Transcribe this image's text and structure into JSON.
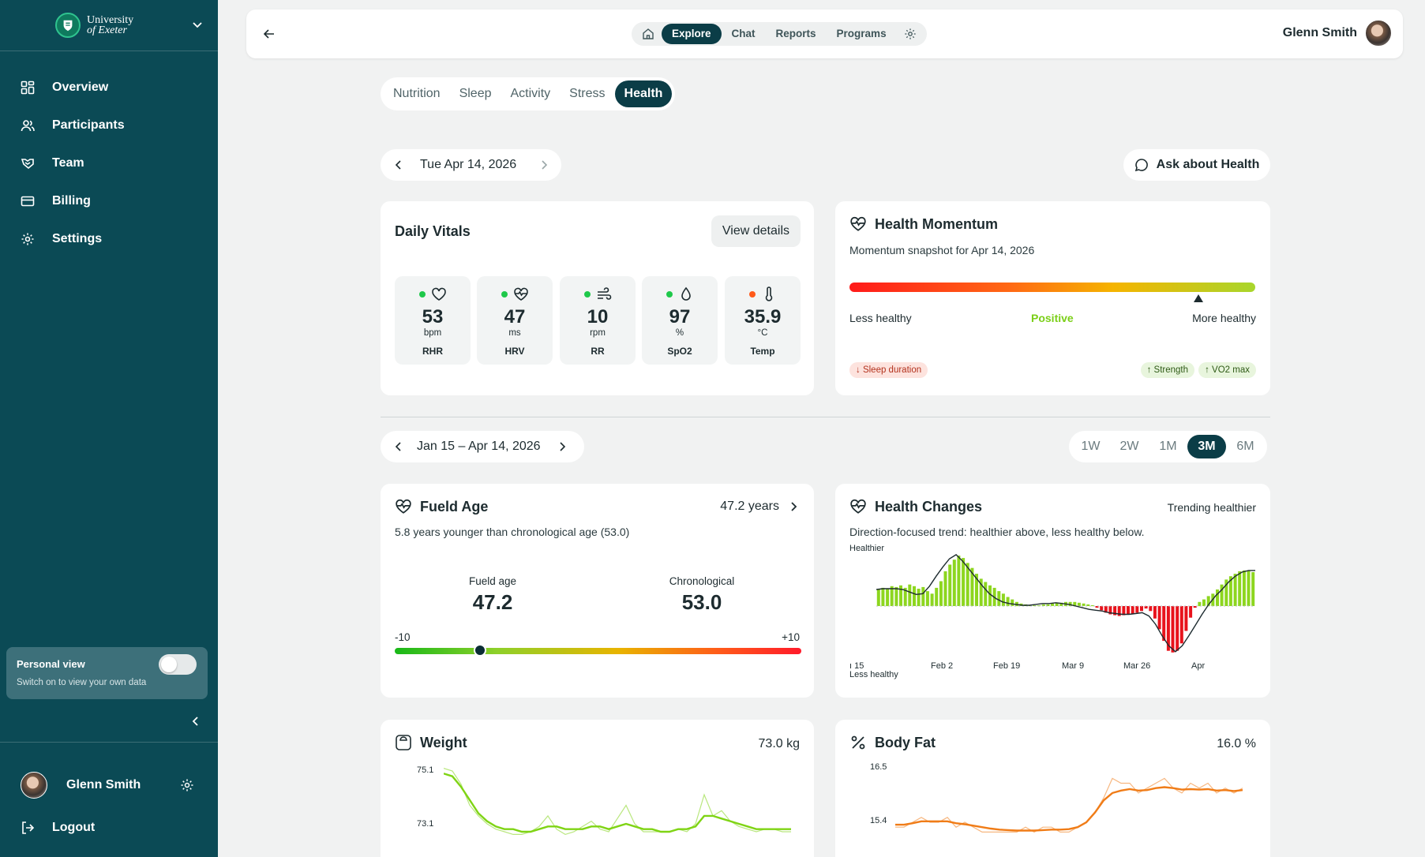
{
  "sidebar": {
    "org_line1": "University",
    "org_line2": "of Exeter",
    "items": [
      {
        "label": "Overview",
        "icon": "grid-icon"
      },
      {
        "label": "Participants",
        "icon": "users-icon"
      },
      {
        "label": "Team",
        "icon": "handshake-icon"
      },
      {
        "label": "Billing",
        "icon": "credit-card-icon"
      },
      {
        "label": "Settings",
        "icon": "gear-icon"
      }
    ],
    "personal_view": {
      "title": "Personal view",
      "subtitle": "Switch on to view your own data",
      "enabled": false
    },
    "user_name": "Glenn Smith",
    "logout_label": "Logout"
  },
  "topbar": {
    "nav": [
      "Explore",
      "Chat",
      "Reports",
      "Programs"
    ],
    "active": "Explore",
    "user_name": "Glenn Smith"
  },
  "categories": {
    "items": [
      "Nutrition",
      "Sleep",
      "Activity",
      "Stress",
      "Health"
    ],
    "active": "Health"
  },
  "day_picker": {
    "label": "Tue Apr 14, 2026"
  },
  "ask_button": "Ask about Health",
  "daily_vitals": {
    "title": "Daily Vitals",
    "view_details": "View details",
    "items": [
      {
        "value": "53",
        "unit": "bpm",
        "label": "RHR",
        "status": "#1ec84a",
        "icon": "heart-icon"
      },
      {
        "value": "47",
        "unit": "ms",
        "label": "HRV",
        "status": "#1ec84a",
        "icon": "heart-pulse-icon"
      },
      {
        "value": "10",
        "unit": "rpm",
        "label": "RR",
        "status": "#1ec84a",
        "icon": "wind-icon"
      },
      {
        "value": "97",
        "unit": "%",
        "label": "SpO2",
        "status": "#1ec84a",
        "icon": "droplet-icon"
      },
      {
        "value": "35.9",
        "unit": "°C",
        "label": "Temp",
        "status": "#ff5a1a",
        "icon": "thermometer-icon"
      }
    ]
  },
  "momentum": {
    "title": "Health Momentum",
    "subtitle": "Momentum snapshot for Apr 14, 2026",
    "position": 0.86,
    "left_label": "Less healthy",
    "center_label": "Positive",
    "right_label": "More healthy",
    "negative_chips": [
      "↓ Sleep duration"
    ],
    "positive_chips": [
      "↑ Strength",
      "↑ VO2 max"
    ]
  },
  "range_picker": {
    "label": "Jan 15 – Apr 14, 2026",
    "options": [
      "1W",
      "2W",
      "1M",
      "3M",
      "6M"
    ],
    "active": "3M"
  },
  "fueld_age": {
    "title": "Fueld Age",
    "value_label": "47.2 years",
    "subtitle": "5.8 years younger than chronological age (53.0)",
    "fueld_label": "Fueld age",
    "fueld_value": "47.2",
    "chrono_label": "Chronological",
    "chrono_value": "53.0",
    "scale_min": "-10",
    "scale_max": "+10",
    "delta": -5.8
  },
  "health_changes": {
    "title": "Health Changes",
    "status": "Trending healthier",
    "subtitle": "Direction-focused trend: healthier above, less healthy below.",
    "top_label": "Healthier",
    "bottom_label": "Less healthy",
    "x_ticks": [
      "ı 15",
      "Feb 2",
      "Feb 19",
      "Mar 9",
      "Mar 26",
      "Apr"
    ],
    "bars": [
      2.0,
      2.2,
      2.1,
      2.4,
      2.3,
      2.5,
      2.2,
      2.6,
      2.4,
      2.1,
      2.3,
      1.8,
      1.5,
      2.2,
      3.0,
      4.2,
      5.0,
      5.6,
      6.1,
      5.8,
      5.2,
      4.6,
      3.9,
      3.3,
      2.9,
      2.5,
      2.2,
      1.8,
      1.5,
      1.1,
      0.8,
      0.5,
      0.3,
      0.2,
      0.1,
      0.1,
      0.1,
      0.2,
      0.2,
      0.3,
      0.4,
      0.4,
      0.5,
      0.5,
      0.5,
      0.4,
      0.3,
      0.2,
      0.1,
      -0.2,
      -0.5,
      -0.8,
      -1.0,
      -1.1,
      -1.2,
      -1.1,
      -1.0,
      -0.9,
      -0.8,
      -0.6,
      -0.3,
      -0.6,
      -1.5,
      -2.8,
      -4.2,
      -5.4,
      -5.6,
      -5.4,
      -4.5,
      -3.0,
      -1.4,
      -0.2,
      0.5,
      0.8,
      1.2,
      1.5,
      2.0,
      2.6,
      3.2,
      3.6,
      3.9,
      4.2,
      4.3,
      4.3,
      4.1
    ],
    "trend": [
      2.0,
      2.1,
      2.1,
      2.1,
      2.0,
      1.7,
      1.4,
      1.5,
      2.4,
      3.6,
      4.7,
      5.7,
      6.2,
      5.4,
      4.4,
      3.4,
      2.4,
      1.5,
      0.9,
      0.5,
      0.3,
      0.2,
      0.1,
      0.1,
      0.2,
      0.3,
      0.3,
      0.4,
      0.3,
      0.2,
      0.0,
      -0.2,
      -0.4,
      -0.5,
      -0.6,
      -0.8,
      -0.9,
      -1.0,
      -1.0,
      -0.9,
      -0.8,
      -1.2,
      -2.2,
      -3.6,
      -4.8,
      -5.5,
      -4.8,
      -3.6,
      -2.3,
      -1.0,
      0.2,
      1.2,
      2.0,
      2.9,
      3.6,
      4.1,
      4.3,
      4.3
    ]
  },
  "weight": {
    "title": "Weight",
    "value": "73.0 kg",
    "y_top": "75.1",
    "y_bottom": "73.1",
    "raw": [
      75.2,
      75.1,
      74.6,
      73.8,
      73.4,
      73.1,
      72.9,
      72.8,
      72.7,
      72.7,
      72.8,
      73.0,
      73.4,
      72.9,
      72.7,
      72.8,
      73.0,
      73.2,
      72.9,
      72.8,
      73.3,
      73.8,
      73.1,
      72.8,
      72.8,
      72.8,
      72.8,
      72.9,
      72.8,
      73.1,
      74.2,
      73.4,
      73.6,
      73.2,
      73.0,
      72.9,
      72.8,
      72.9,
      72.9,
      72.8,
      72.8
    ],
    "smooth": [
      75.0,
      74.9,
      74.5,
      74.0,
      73.5,
      73.2,
      73.0,
      72.9,
      72.9,
      72.8,
      72.8,
      72.9,
      73.0,
      73.0,
      72.9,
      72.9,
      72.9,
      73.0,
      73.0,
      72.9,
      73.0,
      73.1,
      73.0,
      72.9,
      72.9,
      72.8,
      72.8,
      72.9,
      72.9,
      73.0,
      73.4,
      73.4,
      73.3,
      73.2,
      73.1,
      73.0,
      72.9,
      72.9,
      72.9,
      72.9,
      72.9
    ]
  },
  "body_fat": {
    "title": "Body Fat",
    "value": "16.0 %",
    "y_top": "16.5",
    "y_bottom": "15.4",
    "raw": [
      15.3,
      15.3,
      15.4,
      15.5,
      15.4,
      15.4,
      15.5,
      15.3,
      15.4,
      15.3,
      15.2,
      15.2,
      15.2,
      15.2,
      15.2,
      15.3,
      15.2,
      15.3,
      15.3,
      15.2,
      15.2,
      15.3,
      15.4,
      15.6,
      15.9,
      16.3,
      16.2,
      16.2,
      16.0,
      16.1,
      16.2,
      16.3,
      16.1,
      16.0,
      16.2,
      16.1,
      16.2,
      16.0,
      16.1,
      16.0,
      16.1
    ],
    "smooth": [
      15.35,
      15.35,
      15.38,
      15.42,
      15.42,
      15.42,
      15.42,
      15.38,
      15.36,
      15.33,
      15.3,
      15.27,
      15.25,
      15.24,
      15.23,
      15.23,
      15.23,
      15.24,
      15.25,
      15.25,
      15.26,
      15.3,
      15.4,
      15.6,
      15.85,
      16.0,
      16.05,
      16.08,
      16.05,
      16.06,
      16.1,
      16.12,
      16.1,
      16.07,
      16.08,
      16.07,
      16.08,
      16.05,
      16.06,
      16.04,
      16.06
    ]
  },
  "colors": {
    "accent": "#0b3d47",
    "sidebar": "#0b4a55",
    "positive": "#8dd61f",
    "negative": "#e8131c",
    "weight_line": "#7fd414",
    "fat_line": "#f07c17"
  }
}
